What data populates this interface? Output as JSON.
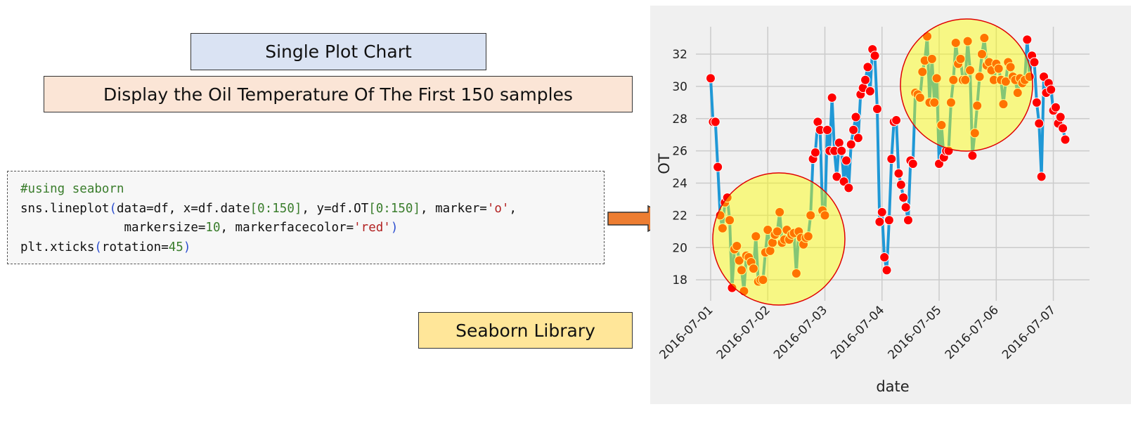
{
  "title": "Single Plot Chart",
  "subtitle": "Display the Oil Temperature Of The First 150 samples",
  "code": {
    "lines": [
      [
        {
          "text": "#using seaborn",
          "color": "#3a7d2c"
        }
      ],
      [
        {
          "text": "sns.lineplot",
          "color": "#111111"
        },
        {
          "text": "(",
          "color": "#2d4fd0"
        },
        {
          "text": "data=df, x=df.date",
          "color": "#111111"
        },
        {
          "text": "[0:150]",
          "color": "#3a7d2c"
        },
        {
          "text": ", y=df.OT",
          "color": "#111111"
        },
        {
          "text": "[0:150]",
          "color": "#3a7d2c"
        },
        {
          "text": ", marker=",
          "color": "#111111"
        },
        {
          "text": "'o'",
          "color": "#b22222"
        },
        {
          "text": ",",
          "color": "#111111"
        }
      ],
      [
        {
          "text": "              markersize=",
          "color": "#111111"
        },
        {
          "text": "10",
          "color": "#3a7d2c"
        },
        {
          "text": ", markerfacecolor=",
          "color": "#111111"
        },
        {
          "text": "'red'",
          "color": "#b22222"
        },
        {
          "text": ")",
          "color": "#2d4fd0"
        }
      ],
      [
        {
          "text": "plt.xticks",
          "color": "#111111"
        },
        {
          "text": "(",
          "color": "#2d4fd0"
        },
        {
          "text": "rotation=",
          "color": "#111111"
        },
        {
          "text": "45",
          "color": "#3a7d2c"
        },
        {
          "text": ")",
          "color": "#2d4fd0"
        }
      ]
    ]
  },
  "library_label": "Seaborn Library",
  "chart_data": {
    "type": "line",
    "x_label": "date",
    "y_label": "OT",
    "grid": true,
    "x": [
      0,
      1,
      2,
      3,
      4,
      5,
      6,
      7,
      8,
      9,
      10,
      11,
      12,
      13,
      14,
      15,
      16,
      17,
      18,
      19,
      20,
      21,
      22,
      23,
      24,
      25,
      26,
      27,
      28,
      29,
      30,
      31,
      32,
      33,
      34,
      35,
      36,
      37,
      38,
      39,
      40,
      41,
      42,
      43,
      44,
      45,
      46,
      47,
      48,
      49,
      50,
      51,
      52,
      53,
      54,
      55,
      56,
      57,
      58,
      59,
      60,
      61,
      62,
      63,
      64,
      65,
      66,
      67,
      68,
      69,
      70,
      71,
      72,
      73,
      74,
      75,
      76,
      77,
      78,
      79,
      80,
      81,
      82,
      83,
      84,
      85,
      86,
      87,
      88,
      89,
      90,
      91,
      92,
      93,
      94,
      95,
      96,
      97,
      98,
      99,
      100,
      101,
      102,
      103,
      104,
      105,
      106,
      107,
      108,
      109,
      110,
      111,
      112,
      113,
      114,
      115,
      116,
      117,
      118,
      119,
      120,
      121,
      122,
      123,
      124,
      125,
      126,
      127,
      128,
      129,
      130,
      131,
      132,
      133,
      134,
      135,
      136,
      137,
      138,
      139,
      140,
      141,
      142,
      143,
      144,
      145,
      146,
      147,
      148,
      149
    ],
    "series": [
      {
        "name": "OT",
        "color": "#1f98d6",
        "marker_color": "red",
        "values": [
          30.5,
          27.8,
          27.8,
          25.0,
          22.0,
          21.2,
          22.8,
          23.1,
          21.7,
          17.5,
          19.9,
          20.1,
          19.2,
          18.6,
          17.3,
          19.5,
          19.4,
          19.1,
          18.7,
          20.7,
          17.9,
          18.0,
          18.0,
          19.7,
          21.1,
          19.8,
          20.3,
          20.8,
          21.0,
          22.2,
          20.3,
          20.5,
          21.1,
          20.5,
          20.8,
          20.9,
          18.4,
          21.0,
          20.6,
          20.2,
          20.6,
          20.7,
          22.0,
          25.5,
          25.9,
          27.8,
          27.3,
          22.3,
          22.0,
          27.3,
          26.0,
          29.3,
          26.0,
          24.4,
          26.5,
          26.0,
          24.1,
          25.4,
          23.7,
          26.4,
          27.3,
          28.1,
          26.8,
          29.5,
          29.9,
          30.4,
          31.2,
          29.7,
          32.3,
          31.9,
          28.6,
          21.6,
          22.2,
          19.4,
          18.6,
          21.7,
          25.5,
          27.8,
          27.9,
          24.6,
          23.9,
          23.1,
          22.5,
          21.7,
          25.4,
          25.2,
          29.6,
          29.5,
          29.3,
          30.9,
          31.6,
          33.1,
          29.0,
          31.7,
          29.0,
          30.5,
          25.2,
          27.6,
          25.6,
          26.0,
          26.0,
          29.0,
          30.4,
          32.7,
          31.4,
          31.7,
          30.4,
          30.4,
          32.8,
          31.0,
          25.7,
          27.1,
          28.8,
          30.6,
          32.0,
          33.0,
          31.3,
          31.5,
          31.0,
          30.4,
          31.4,
          31.1,
          30.4,
          28.9,
          30.3,
          31.5,
          31.2,
          30.6,
          30.4,
          29.6,
          30.5,
          30.2,
          30.4,
          32.9,
          30.6,
          31.9,
          31.5,
          29.0,
          27.7,
          24.4,
          30.6,
          29.6,
          30.2,
          29.8,
          28.5,
          28.7,
          27.7,
          28.1,
          27.4,
          26.7
        ]
      }
    ],
    "xlim": [
      -6.2,
      159.2
    ],
    "xticks": [
      {
        "value": 0,
        "label": "2016-07-01"
      },
      {
        "value": 24,
        "label": "2016-07-02"
      },
      {
        "value": 48,
        "label": "2016-07-03"
      },
      {
        "value": 72,
        "label": "2016-07-04"
      },
      {
        "value": 96,
        "label": "2016-07-05"
      },
      {
        "value": 120,
        "label": "2016-07-06"
      },
      {
        "value": 144,
        "label": "2016-07-07"
      }
    ],
    "ylim": [
      16.7,
      33.7
    ],
    "yticks": [
      18,
      20,
      22,
      24,
      26,
      28,
      30,
      32
    ]
  }
}
